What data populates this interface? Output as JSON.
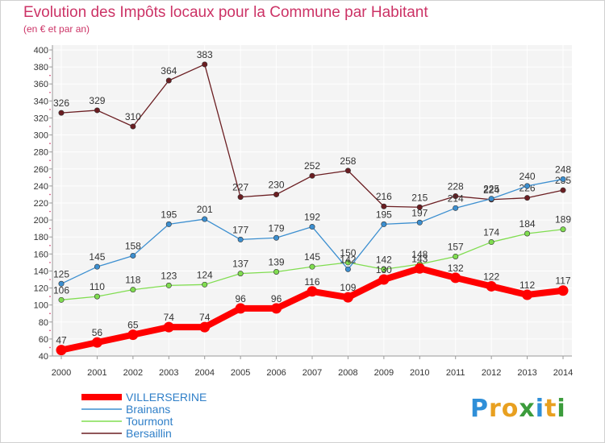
{
  "page": {
    "title": "Evolution des Impôts locaux pour la Commune par Habitant",
    "subtitle": "(en € et par an)",
    "logo": "Proxiti",
    "logo_letters": [
      {
        "ch": "P",
        "color": "#2f8fd8"
      },
      {
        "ch": "r",
        "color": "#e8a020"
      },
      {
        "ch": "o",
        "color": "#e8a020"
      },
      {
        "ch": "x",
        "color": "#3c9c3c"
      },
      {
        "ch": "i",
        "color": "#2f8fd8"
      },
      {
        "ch": "t",
        "color": "#e8a020"
      },
      {
        "ch": "i",
        "color": "#3c9c3c"
      }
    ]
  },
  "chart_data": {
    "type": "line",
    "title": "Evolution des Impôts locaux pour la Commune par Habitant",
    "subtitle": "(en € et par an)",
    "xlabel": "",
    "ylabel": "",
    "ylim": [
      40,
      400
    ],
    "y_ticks": [
      40,
      60,
      80,
      100,
      120,
      140,
      160,
      180,
      200,
      220,
      240,
      260,
      280,
      300,
      320,
      340,
      360,
      380,
      400
    ],
    "x": [
      "2000",
      "2001",
      "2002",
      "2003",
      "2004",
      "2005",
      "2006",
      "2007",
      "2008",
      "2009",
      "2010",
      "2011",
      "2012",
      "2013",
      "2014"
    ],
    "grid": true,
    "legend_position": "bottom-left",
    "series": [
      {
        "name": "VILLERSERINE",
        "color": "#ff0000",
        "values": [
          47,
          56,
          65,
          74,
          74,
          96,
          96,
          116,
          109,
          130,
          143,
          132,
          122,
          112,
          117
        ]
      },
      {
        "name": "Brainans",
        "color": "#3c8fd0",
        "values": [
          125,
          145,
          158,
          195,
          201,
          177,
          179,
          192,
          142,
          195,
          197,
          214,
          225,
          240,
          248
        ]
      },
      {
        "name": "Tourmont",
        "color": "#80dd50",
        "values": [
          106,
          110,
          118,
          123,
          124,
          137,
          139,
          145,
          150,
          142,
          148,
          157,
          174,
          184,
          189
        ]
      },
      {
        "name": "Bersaillin",
        "color": "#6b1e22",
        "values": [
          326,
          329,
          310,
          364,
          383,
          227,
          230,
          252,
          258,
          216,
          215,
          228,
          224,
          226,
          235
        ]
      }
    ]
  }
}
